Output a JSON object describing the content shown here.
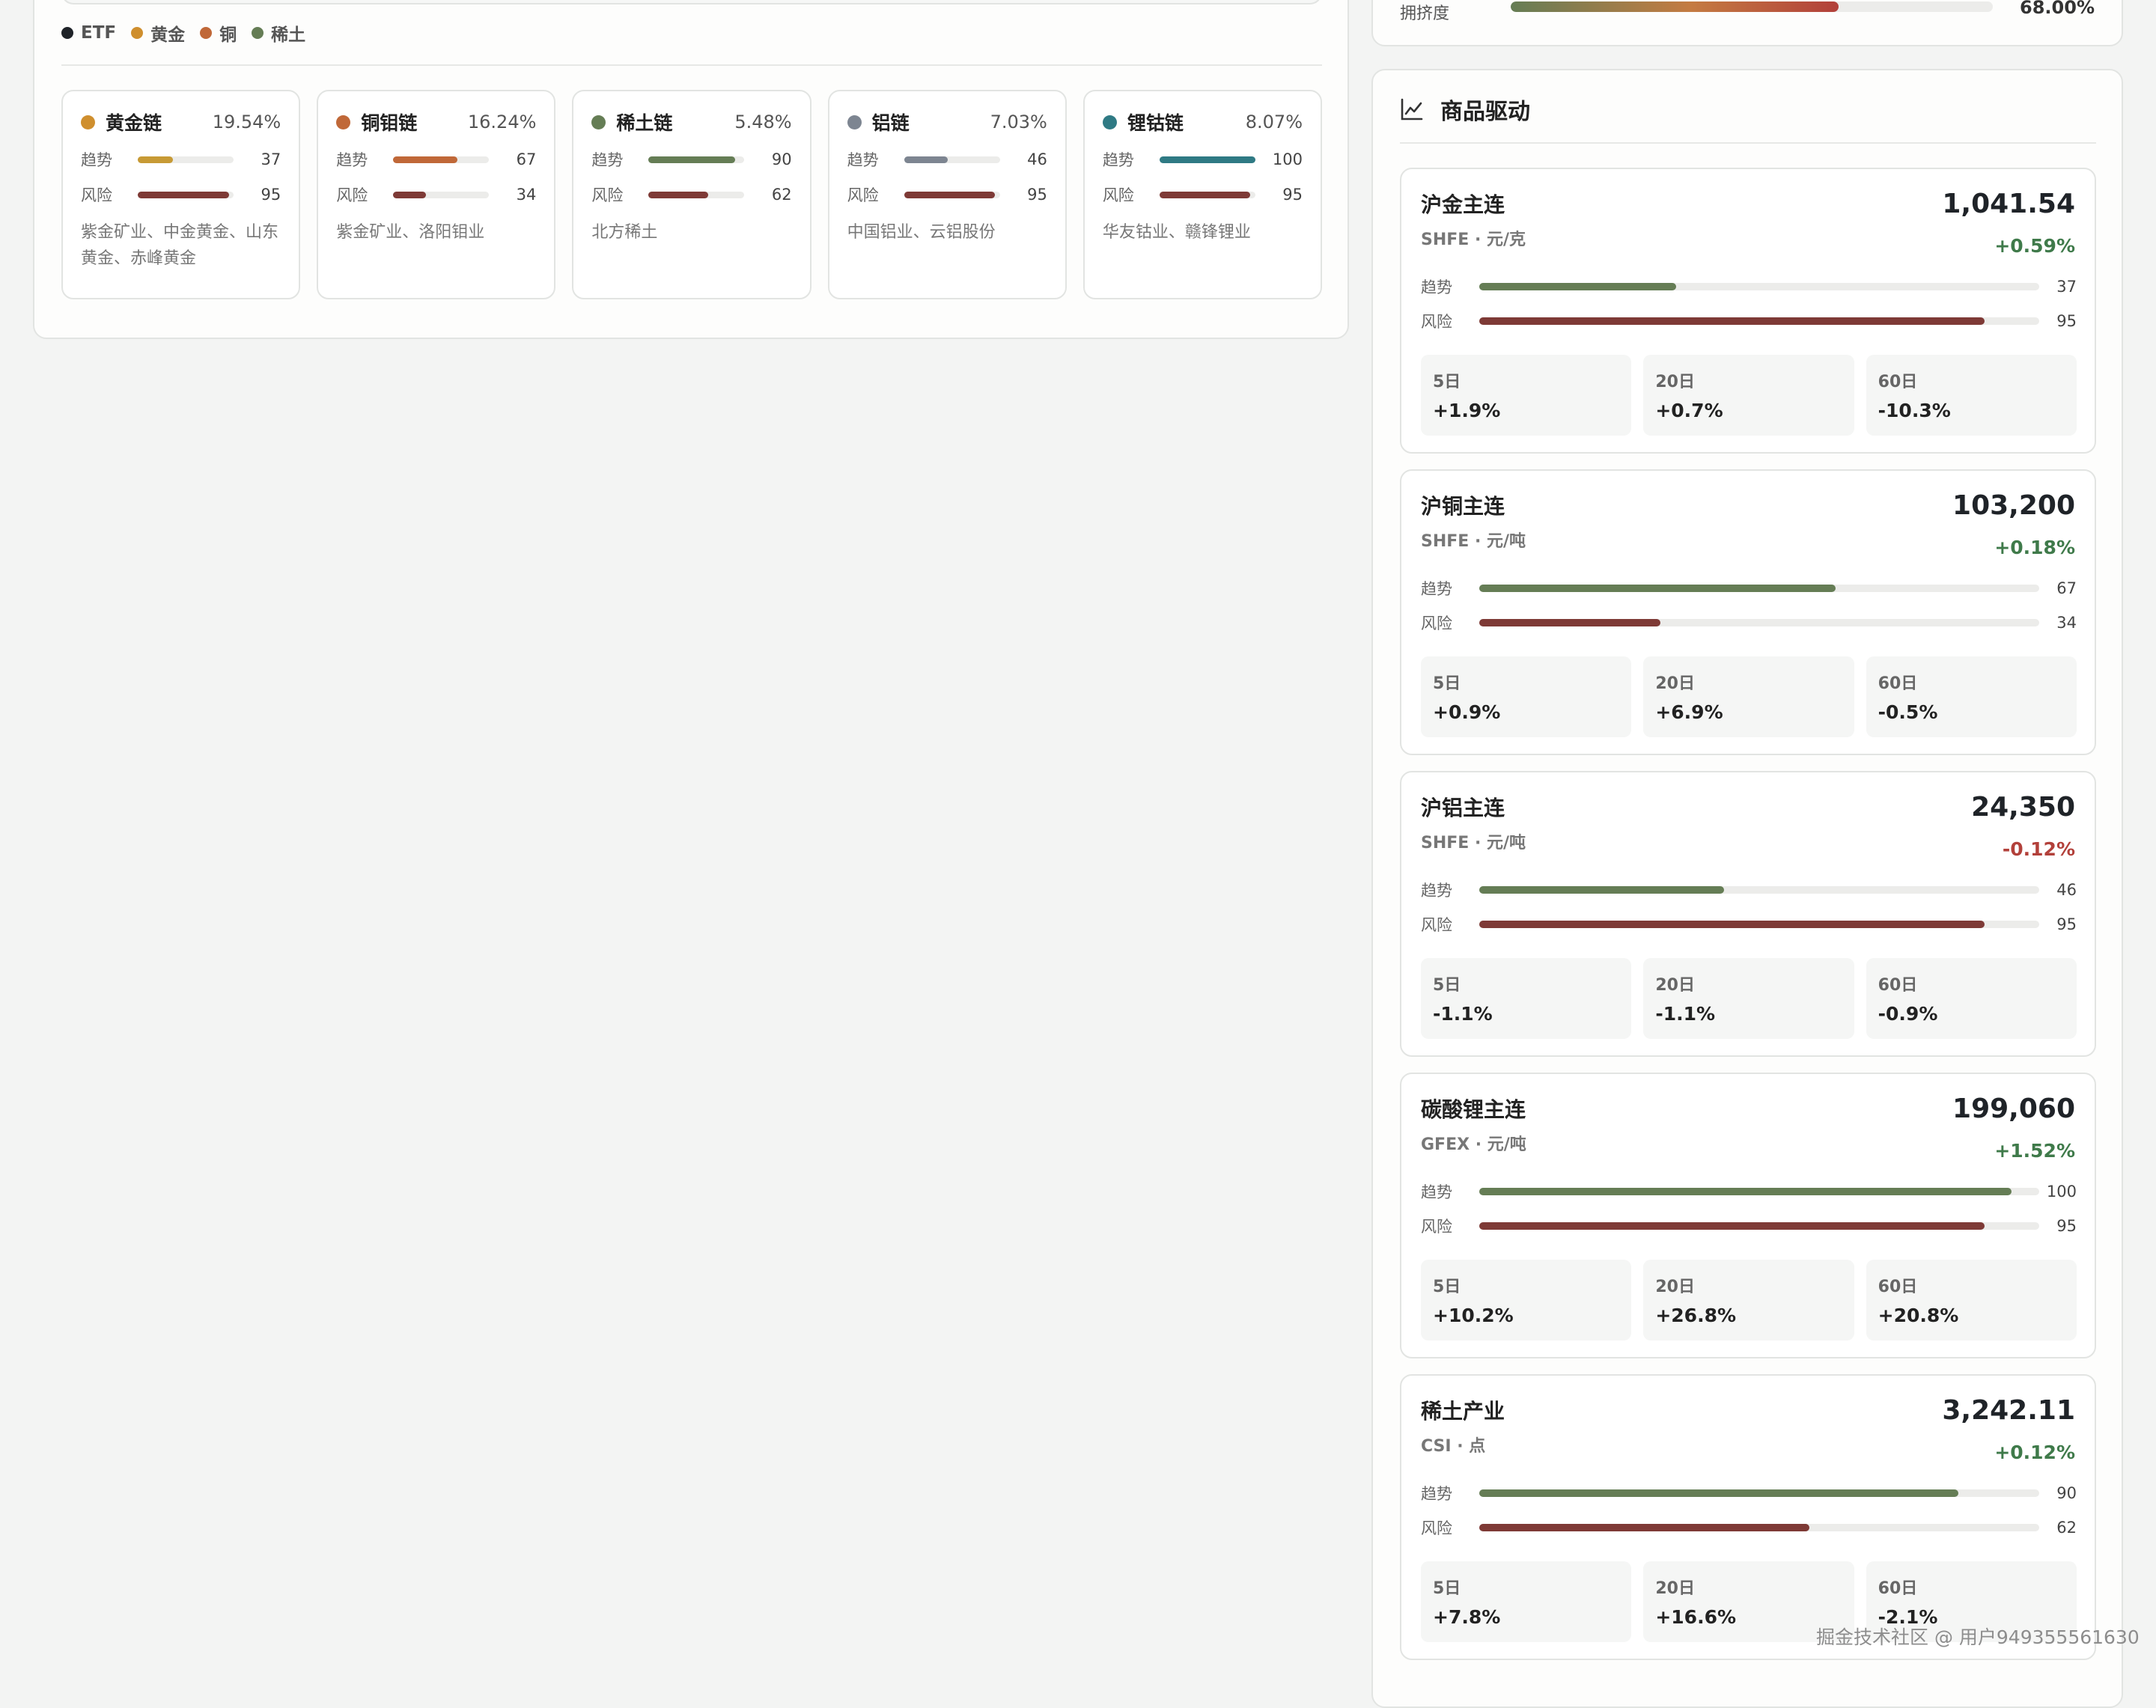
{
  "legend": [
    {
      "label": "ETF",
      "color": "#1f2328"
    },
    {
      "label": "黄金",
      "color": "#cf8f2e"
    },
    {
      "label": "铜",
      "color": "#c06838"
    },
    {
      "label": "稀土",
      "color": "#657d55"
    }
  ],
  "chains": [
    {
      "name": "黄金链",
      "weight": "19.54%",
      "color": "#cf8f2e",
      "trend_label": "趋势",
      "trend": 37,
      "trend_color": "#c79a35",
      "risk_label": "风险",
      "risk": 95,
      "stocks": "紫金矿业、中金黄金、山东黄金、赤峰黄金"
    },
    {
      "name": "铜钼链",
      "weight": "16.24%",
      "color": "#c06838",
      "trend_label": "趋势",
      "trend": 67,
      "trend_color": "#c06838",
      "risk_label": "风险",
      "risk": 34,
      "stocks": "紫金矿业、洛阳钼业"
    },
    {
      "name": "稀土链",
      "weight": "5.48%",
      "color": "#657d55",
      "trend_label": "趋势",
      "trend": 90,
      "trend_color": "#657d55",
      "risk_label": "风险",
      "risk": 62,
      "stocks": "北方稀土"
    },
    {
      "name": "铝链",
      "weight": "7.03%",
      "color": "#7d8591",
      "trend_label": "趋势",
      "trend": 46,
      "trend_color": "#7d8591",
      "risk_label": "风险",
      "risk": 95,
      "stocks": "中国铝业、云铝股份"
    },
    {
      "name": "锂钴链",
      "weight": "8.07%",
      "color": "#2f7a84",
      "trend_label": "趋势",
      "trend": 100,
      "trend_color": "#2f7a84",
      "risk_label": "风险",
      "risk": 95,
      "stocks": "华友钴业、赣锋锂业"
    }
  ],
  "risk_color": "#7e3a36",
  "crowding": {
    "label": "拥挤度",
    "value": "68.00%",
    "fraction": 0.68
  },
  "commodity_panel": {
    "title": "商品驱动",
    "icon": "line-chart-icon"
  },
  "commodities": [
    {
      "name": "沪金主连",
      "sub": "SHFE · 元/克",
      "price": "1,041.54",
      "change": "+0.59%",
      "direction": "up",
      "trend": 37,
      "risk": 95,
      "periods": [
        {
          "label": "5日",
          "value": "+1.9%"
        },
        {
          "label": "20日",
          "value": "+0.7%"
        },
        {
          "label": "60日",
          "value": "-10.3%"
        }
      ]
    },
    {
      "name": "沪铜主连",
      "sub": "SHFE · 元/吨",
      "price": "103,200",
      "change": "+0.18%",
      "direction": "up",
      "trend": 67,
      "risk": 34,
      "periods": [
        {
          "label": "5日",
          "value": "+0.9%"
        },
        {
          "label": "20日",
          "value": "+6.9%"
        },
        {
          "label": "60日",
          "value": "-0.5%"
        }
      ]
    },
    {
      "name": "沪铝主连",
      "sub": "SHFE · 元/吨",
      "price": "24,350",
      "change": "-0.12%",
      "direction": "down",
      "trend": 46,
      "risk": 95,
      "periods": [
        {
          "label": "5日",
          "value": "-1.1%"
        },
        {
          "label": "20日",
          "value": "-1.1%"
        },
        {
          "label": "60日",
          "value": "-0.9%"
        }
      ]
    },
    {
      "name": "碳酸锂主连",
      "sub": "GFEX · 元/吨",
      "price": "199,060",
      "change": "+1.52%",
      "direction": "up",
      "trend": 100,
      "risk": 95,
      "periods": [
        {
          "label": "5日",
          "value": "+10.2%"
        },
        {
          "label": "20日",
          "value": "+26.8%"
        },
        {
          "label": "60日",
          "value": "+20.8%"
        }
      ]
    },
    {
      "name": "稀土产业",
      "sub": "CSI · 点",
      "price": "3,242.11",
      "change": "+0.12%",
      "direction": "up",
      "trend": 90,
      "risk": 62,
      "periods": [
        {
          "label": "5日",
          "value": "+7.8%"
        },
        {
          "label": "20日",
          "value": "+16.6%"
        },
        {
          "label": "60日",
          "value": "-2.1%"
        }
      ]
    }
  ],
  "labels": {
    "trend": "趋势",
    "risk": "风险"
  },
  "trend_color": "#657d55",
  "watermark": "掘金技术社区 @ 用户949355561630"
}
